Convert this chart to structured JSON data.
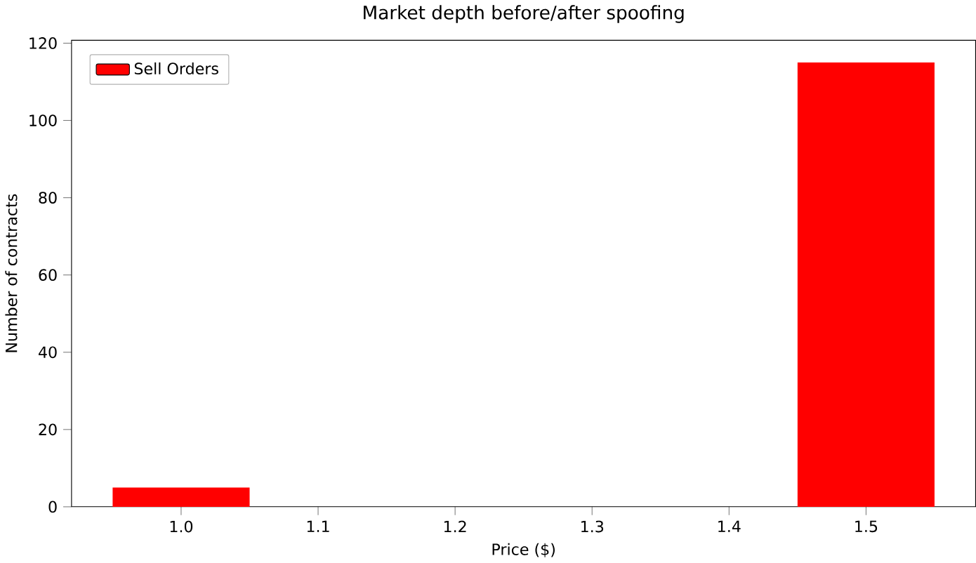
{
  "chart_data": {
    "type": "bar",
    "title": "Market depth before/after spoofing",
    "xlabel": "Price ($)",
    "ylabel": "Number of contracts",
    "x": [
      1.0,
      1.5
    ],
    "series": [
      {
        "name": "Sell Orders",
        "color": "#ff0000",
        "values": [
          5,
          115
        ]
      }
    ],
    "xlim": [
      0.92,
      1.58
    ],
    "xticks": [
      {
        "value": 1.0,
        "label": "1.0"
      },
      {
        "value": 1.1,
        "label": "1.1"
      },
      {
        "value": 1.2,
        "label": "1.2"
      },
      {
        "value": 1.3,
        "label": "1.3"
      },
      {
        "value": 1.4,
        "label": "1.4"
      },
      {
        "value": 1.5,
        "label": "1.5"
      }
    ],
    "ylim": [
      0,
      120.75
    ],
    "yticks": [
      0,
      20,
      40,
      60,
      80,
      100,
      120
    ],
    "legend": "top left",
    "grid": false
  }
}
